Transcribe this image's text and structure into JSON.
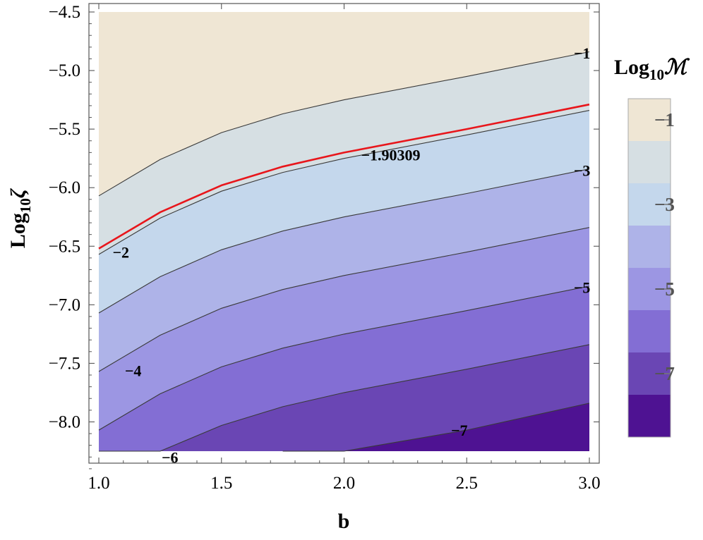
{
  "chart_data": {
    "type": "contour",
    "xlabel": "b",
    "ylabel": {
      "base": "Log",
      "sub": "10",
      "symbol": "ζ"
    },
    "xlim": [
      1.0,
      3.0
    ],
    "ylim": [
      -8.25,
      -4.5
    ],
    "x_ticks": [
      "1.0",
      "1.5",
      "2.0",
      "2.5",
      "3.0"
    ],
    "y_ticks": [
      "−4.5",
      "−5.0",
      "−5.5",
      "−6.0",
      "−6.5",
      "−7.0",
      "−7.5",
      "−8.0"
    ],
    "grid": false,
    "contour_levels": [
      -1,
      -2,
      -3,
      -4,
      -5,
      -6,
      -7
    ],
    "contour_line_values": [
      {
        "x": [
          1.0,
          1.25,
          1.5,
          1.75,
          2.0,
          2.5,
          3.0
        ],
        "y": [
          -8.25,
          -8.25,
          -8.25,
          -8.25,
          -8.25,
          -8.07,
          -7.84
        ]
      },
      {
        "x": [
          1.0,
          1.25,
          1.5,
          1.75,
          2.0,
          2.5,
          3.0
        ],
        "y": [
          -8.25,
          -8.25,
          -8.03,
          -7.87,
          -7.75,
          -7.55,
          -7.34
        ]
      },
      {
        "x": [
          1.0,
          1.25,
          1.5,
          1.75,
          2.0,
          2.5,
          3.0
        ],
        "y": [
          -8.07,
          -7.76,
          -7.53,
          -7.37,
          -7.25,
          -7.05,
          -6.84
        ]
      },
      {
        "x": [
          1.0,
          1.25,
          1.5,
          1.75,
          2.0,
          2.5,
          3.0
        ],
        "y": [
          -7.57,
          -7.26,
          -7.03,
          -6.87,
          -6.75,
          -6.55,
          -6.34
        ]
      },
      {
        "x": [
          1.0,
          1.25,
          1.5,
          1.75,
          2.0,
          2.5,
          3.0
        ],
        "y": [
          -7.07,
          -6.76,
          -6.53,
          -6.37,
          -6.25,
          -6.05,
          -5.84
        ]
      },
      {
        "x": [
          1.0,
          1.25,
          1.5,
          1.75,
          2.0,
          2.5,
          3.0
        ],
        "y": [
          -6.57,
          -6.26,
          -6.03,
          -5.87,
          -5.75,
          -5.55,
          -5.34
        ]
      },
      {
        "x": [
          1.0,
          1.25,
          1.5,
          1.75,
          2.0,
          2.5,
          3.0
        ],
        "y": [
          -6.07,
          -5.76,
          -5.53,
          -5.37,
          -5.25,
          -5.05,
          -4.84
        ]
      }
    ],
    "highlight_line": {
      "value": -1.90309,
      "label": "−1.90309",
      "color": "#e8161b",
      "x": [
        1.0,
        1.25,
        1.5,
        1.75,
        2.0,
        2.5,
        3.0
      ],
      "y": [
        -6.52,
        -6.21,
        -5.98,
        -5.82,
        -5.7,
        -5.5,
        -5.29
      ]
    },
    "contour_labels": [
      {
        "text": "−1",
        "x": 2.97,
        "y": -4.85
      },
      {
        "text": "−1.90309",
        "x": 2.19,
        "y": -5.72
      },
      {
        "text": "−2",
        "x": 1.09,
        "y": -6.55
      },
      {
        "text": "−3",
        "x": 2.97,
        "y": -5.85
      },
      {
        "text": "−4",
        "x": 1.14,
        "y": -7.56
      },
      {
        "text": "−5",
        "x": 2.97,
        "y": -6.85
      },
      {
        "text": "−6",
        "x": 1.29,
        "y": -8.3
      },
      {
        "text": "−7",
        "x": 2.47,
        "y": -8.07
      }
    ],
    "fill_colors": [
      "#4e1292",
      "#6a46b4",
      "#836ed4",
      "#9c96e3",
      "#aeb3e8",
      "#c4d7ec",
      "#d6dfe3",
      "#efe6d4"
    ],
    "colorbar": {
      "title": {
        "base": "Log",
        "sub": "10",
        "symbol": "ℳ"
      },
      "colors": [
        "#efe6d4",
        "#d6dfe3",
        "#c4d7ec",
        "#aeb3e8",
        "#9c96e3",
        "#836ed4",
        "#6a46b4",
        "#4e1292"
      ],
      "tick_labels": [
        "−1",
        "−3",
        "−5",
        "−7"
      ],
      "tick_values": [
        -1,
        -3,
        -5,
        -7
      ],
      "range": [
        -0.5,
        -8.5
      ]
    }
  }
}
